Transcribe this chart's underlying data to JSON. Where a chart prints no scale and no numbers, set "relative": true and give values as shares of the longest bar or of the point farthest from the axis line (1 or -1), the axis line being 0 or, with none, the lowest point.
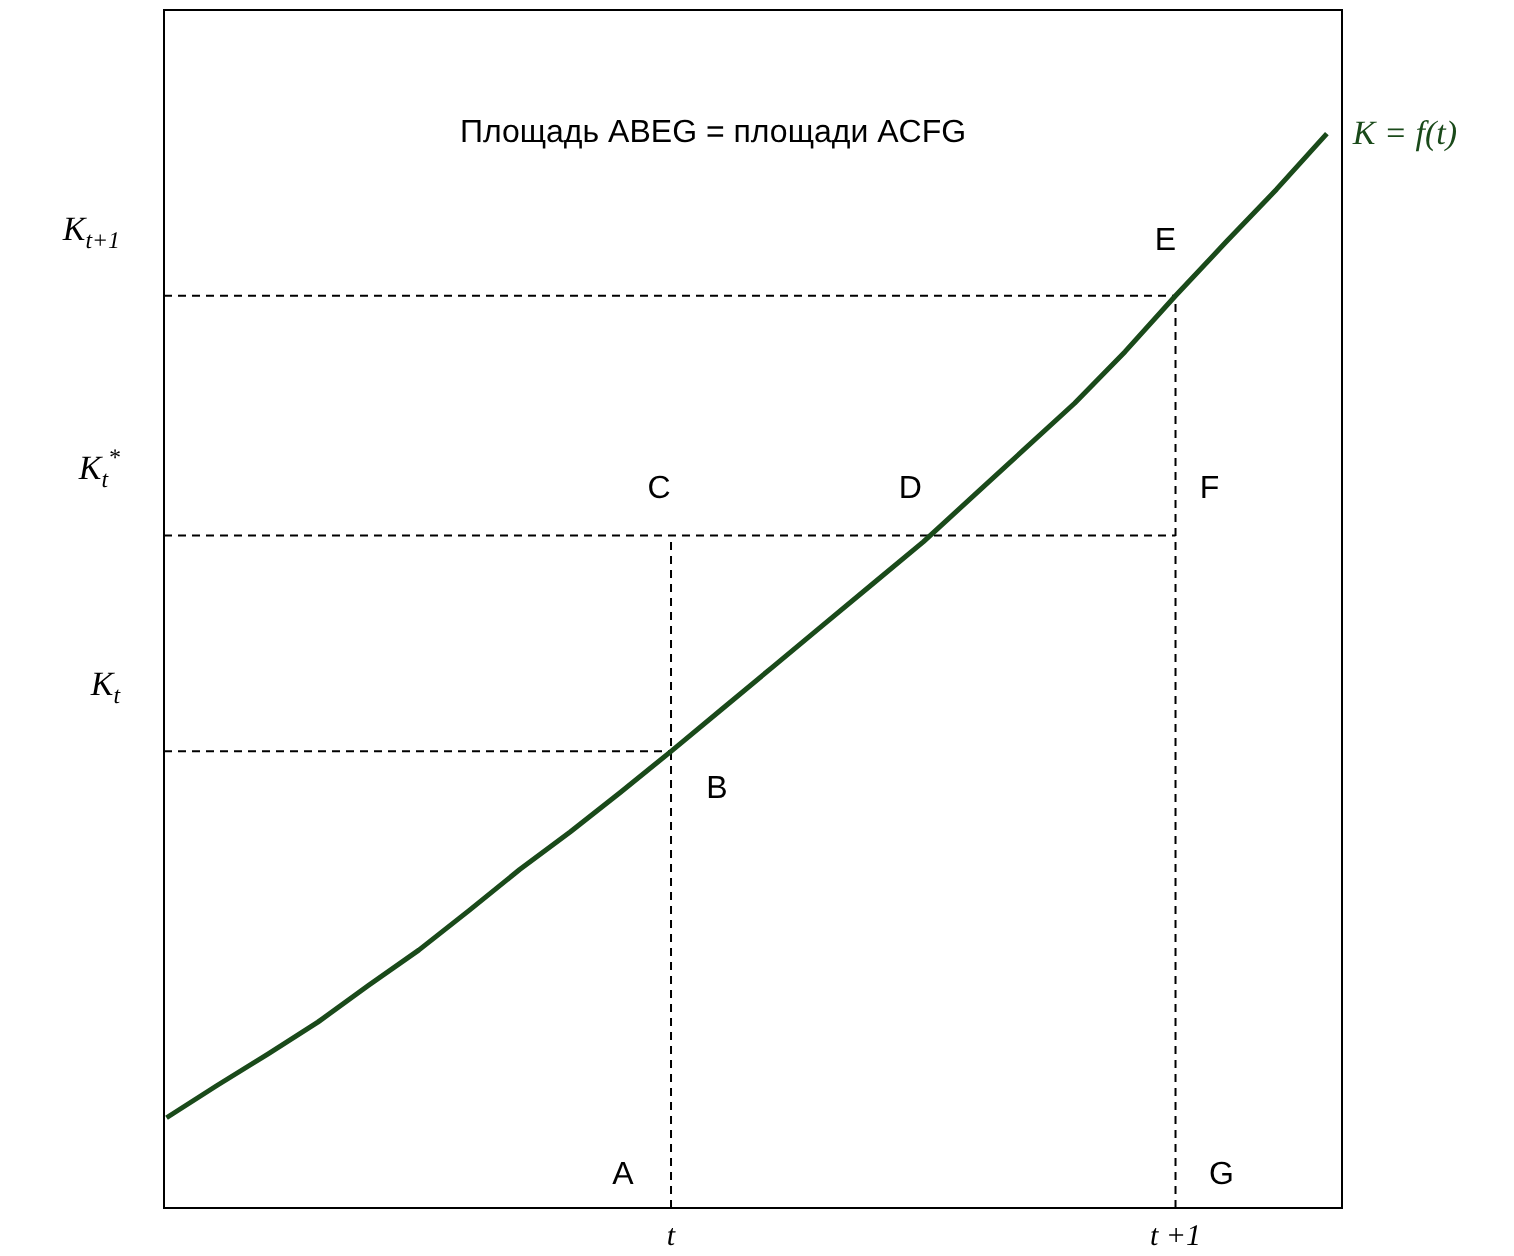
{
  "chart_data": {
    "type": "line",
    "title": "Площадь ABEG = площади ACFG",
    "relative": true,
    "categories": [
      null,
      null,
      null,
      null,
      null,
      null,
      null,
      null,
      null,
      null,
      "t",
      null,
      null,
      null,
      null,
      null,
      null,
      null,
      null,
      null,
      "t +1",
      null,
      null,
      null
    ],
    "series": [
      {
        "name": "K = f(t)",
        "color": "#1a4a1a",
        "values": [
          0.084,
          0.114,
          0.143,
          0.173,
          0.207,
          0.24,
          0.277,
          0.315,
          0.35,
          0.387,
          0.425,
          0.464,
          0.503,
          0.542,
          0.581,
          0.62,
          0.663,
          0.706,
          0.749,
          0.797,
          0.849,
          0.899,
          0.948,
          1.0
        ]
      }
    ],
    "ref_lines": [
      {
        "axis": "y",
        "value": 0.849,
        "label": "K$_{t+1}$",
        "line_style": "dashed"
      },
      {
        "axis": "y",
        "value": 0.626,
        "label": "K$_{t}$$^{*}$",
        "line_style": "dashed"
      },
      {
        "axis": "y",
        "value": 0.425,
        "label": "K$_{t}$",
        "line_style": "dashed"
      },
      {
        "axis": "x",
        "value": "t",
        "line_style": "dashed"
      },
      {
        "axis": "x",
        "value": "t +1",
        "line_style": "dashed"
      }
    ],
    "annotations": [
      {
        "text": "A",
        "x": "t",
        "y": 0
      },
      {
        "text": "B",
        "x": "t",
        "y": 0.425
      },
      {
        "text": "C",
        "x": "t",
        "y": 0.626
      },
      {
        "text": "D",
        "y": 0.626
      },
      {
        "text": "E",
        "x": "t +1",
        "y": 0.849
      },
      {
        "text": "F",
        "x": "t +1",
        "y": 0.626
      },
      {
        "text": "G",
        "x": "t +1",
        "y": 0
      }
    ]
  }
}
